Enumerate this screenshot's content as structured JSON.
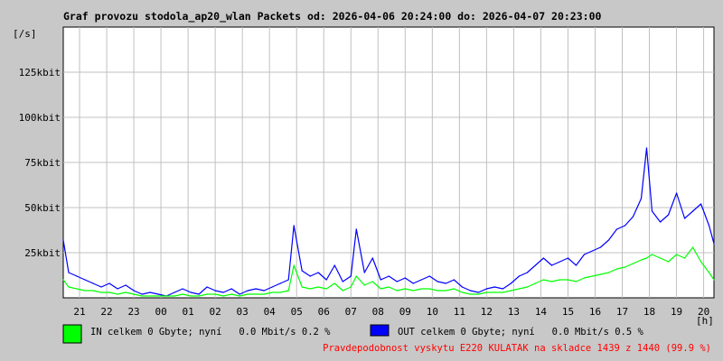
{
  "chart_data": {
    "type": "line",
    "title": "Graf provozu stodola_ap20_wlan Packets od: 2026-04-06 20:24:00 do: 2026-04-07 20:23:00",
    "ylabel": "[/s]",
    "xlabel": "[h]",
    "ylim": [
      0,
      150
    ],
    "y_ticks": [
      {
        "value": 25,
        "label": "25kbit"
      },
      {
        "value": 50,
        "label": "50kbit"
      },
      {
        "value": 75,
        "label": "75kbit"
      },
      {
        "value": 100,
        "label": "100kbit"
      },
      {
        "value": 125,
        "label": "125kbit"
      }
    ],
    "x_start_hour": 20.4,
    "x_end_hour": 44.38,
    "x_tick_labels": [
      "21",
      "22",
      "23",
      "00",
      "01",
      "02",
      "03",
      "04",
      "05",
      "06",
      "07",
      "08",
      "09",
      "10",
      "11",
      "12",
      "13",
      "14",
      "15",
      "16",
      "17",
      "18",
      "19",
      "20"
    ],
    "grid": true,
    "series": [
      {
        "name": "OUT",
        "color": "#0000ff",
        "x": [
          20.4,
          20.6,
          20.9,
          21.2,
          21.5,
          21.8,
          22.1,
          22.4,
          22.7,
          23.0,
          23.3,
          23.6,
          23.9,
          24.2,
          24.5,
          24.8,
          25.1,
          25.4,
          25.7,
          26.0,
          26.3,
          26.6,
          26.9,
          27.2,
          27.5,
          27.8,
          28.1,
          28.4,
          28.7,
          28.9,
          29.2,
          29.5,
          29.8,
          30.1,
          30.4,
          30.7,
          31.0,
          31.2,
          31.5,
          31.8,
          32.1,
          32.4,
          32.7,
          33.0,
          33.3,
          33.6,
          33.9,
          34.2,
          34.5,
          34.8,
          35.1,
          35.4,
          35.7,
          36.0,
          36.3,
          36.6,
          36.9,
          37.2,
          37.5,
          37.8,
          38.1,
          38.4,
          38.7,
          39.0,
          39.3,
          39.6,
          39.9,
          40.2,
          40.5,
          40.8,
          41.1,
          41.4,
          41.7,
          41.9,
          42.1,
          42.4,
          42.7,
          43.0,
          43.3,
          43.6,
          43.9,
          44.2,
          44.38
        ],
        "y": [
          32,
          14,
          12,
          10,
          8,
          6,
          8,
          5,
          7,
          4,
          2,
          3,
          2,
          1,
          3,
          5,
          3,
          2,
          6,
          4,
          3,
          5,
          2,
          4,
          5,
          4,
          6,
          8,
          10,
          40,
          15,
          12,
          14,
          10,
          18,
          9,
          12,
          38,
          14,
          22,
          10,
          12,
          9,
          11,
          8,
          10,
          12,
          9,
          8,
          10,
          6,
          4,
          3,
          5,
          6,
          5,
          8,
          12,
          14,
          18,
          22,
          18,
          20,
          22,
          18,
          24,
          26,
          28,
          32,
          38,
          40,
          45,
          55,
          83,
          48,
          42,
          46,
          58,
          44,
          48,
          52,
          40,
          30
        ]
      },
      {
        "name": "IN",
        "color": "#00ff00",
        "x": [
          20.4,
          20.6,
          20.9,
          21.2,
          21.5,
          21.8,
          22.1,
          22.4,
          22.7,
          23.0,
          23.3,
          23.6,
          23.9,
          24.2,
          24.5,
          24.8,
          25.1,
          25.4,
          25.7,
          26.0,
          26.3,
          26.6,
          26.9,
          27.2,
          27.5,
          27.8,
          28.1,
          28.4,
          28.7,
          28.9,
          29.2,
          29.5,
          29.8,
          30.1,
          30.4,
          30.7,
          31.0,
          31.2,
          31.5,
          31.8,
          32.1,
          32.4,
          32.7,
          33.0,
          33.3,
          33.6,
          33.9,
          34.2,
          34.5,
          34.8,
          35.1,
          35.4,
          35.7,
          36.0,
          36.3,
          36.6,
          36.9,
          37.2,
          37.5,
          37.8,
          38.1,
          38.4,
          38.7,
          39.0,
          39.3,
          39.6,
          39.9,
          40.2,
          40.5,
          40.8,
          41.1,
          41.4,
          41.7,
          41.9,
          42.1,
          42.4,
          42.7,
          43.0,
          43.3,
          43.6,
          43.9,
          44.2,
          44.38
        ],
        "y": [
          10,
          6,
          5,
          4,
          4,
          3,
          3,
          2,
          3,
          2,
          1,
          1,
          1,
          1,
          1,
          2,
          1,
          1,
          2,
          2,
          1,
          2,
          1,
          2,
          2,
          2,
          3,
          3,
          4,
          18,
          6,
          5,
          6,
          5,
          8,
          4,
          6,
          12,
          7,
          9,
          5,
          6,
          4,
          5,
          4,
          5,
          5,
          4,
          4,
          5,
          3,
          2,
          2,
          3,
          3,
          3,
          4,
          5,
          6,
          8,
          10,
          9,
          10,
          10,
          9,
          11,
          12,
          13,
          14,
          16,
          17,
          19,
          21,
          22,
          24,
          22,
          20,
          24,
          22,
          28,
          20,
          14,
          10
        ]
      }
    ],
    "legend": [
      {
        "color": "#00ff00",
        "text": "IN celkem 0 Gbyte; nyní   0.0 Mbit/s 0.2 %"
      },
      {
        "color": "#0000ff",
        "text": "OUT celkem 0 Gbyte; nyní   0.0 Mbit/s 0.5 %"
      }
    ],
    "footer": "Pravdepodobnost vyskytu E220 KULATAK na skladce 1439 z 1440 (99.9 %)"
  }
}
